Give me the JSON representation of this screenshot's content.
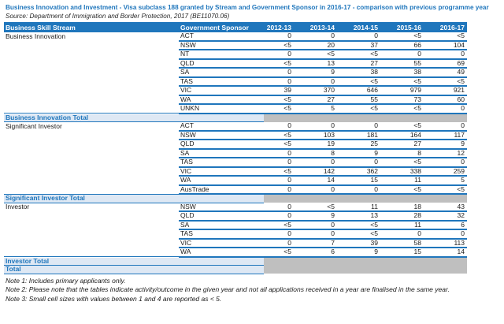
{
  "title": "Business Innovation and Investment - Visa subclass 188 granted by Stream and Government Sponsor in 2016-17 - comparison with previous programme year",
  "source": "Source: Department of Immigration and Border Protection, 2017 (BE11070.06)",
  "colors": {
    "header_bg": "#1f76bc",
    "row_border": "#1f76bc",
    "total_row_bg": "#dee8f4",
    "total_row_text": "#1f76bc",
    "suppressed_area_gray": "#bfbfbf",
    "title_text": "#1f76bc"
  },
  "table": {
    "columns": [
      "Business Skill Stream",
      "Government Sponsor",
      "2012-13",
      "2013-14",
      "2014-15",
      "2015-16",
      "2016-17"
    ],
    "groups": [
      {
        "stream": "Business Innovation",
        "total_label": "Business Innovation Total",
        "rows": [
          {
            "sponsor": "ACT",
            "values": [
              "0",
              "0",
              "0",
              "<5",
              "<5"
            ]
          },
          {
            "sponsor": "NSW",
            "values": [
              "<5",
              "20",
              "37",
              "66",
              "104"
            ]
          },
          {
            "sponsor": "NT",
            "values": [
              "0",
              "<5",
              "<5",
              "0",
              "0"
            ]
          },
          {
            "sponsor": "QLD",
            "values": [
              "<5",
              "13",
              "27",
              "55",
              "69"
            ]
          },
          {
            "sponsor": "SA",
            "values": [
              "0",
              "9",
              "38",
              "38",
              "49"
            ]
          },
          {
            "sponsor": "TAS",
            "values": [
              "0",
              "0",
              "<5",
              "<5",
              "<5"
            ]
          },
          {
            "sponsor": "VIC",
            "values": [
              "39",
              "370",
              "646",
              "979",
              "921"
            ]
          },
          {
            "sponsor": "WA",
            "values": [
              "<5",
              "27",
              "55",
              "73",
              "60"
            ]
          },
          {
            "sponsor": "UNKN",
            "values": [
              "<5",
              "5",
              "<5",
              "<5",
              "0"
            ]
          }
        ]
      },
      {
        "stream": "Significant Investor",
        "total_label": "Significant Investor Total",
        "rows": [
          {
            "sponsor": "ACT",
            "values": [
              "0",
              "0",
              "0",
              "<5",
              "0"
            ]
          },
          {
            "sponsor": "NSW",
            "values": [
              "<5",
              "103",
              "181",
              "164",
              "117"
            ]
          },
          {
            "sponsor": "QLD",
            "values": [
              "<5",
              "19",
              "25",
              "27",
              "9"
            ]
          },
          {
            "sponsor": "SA",
            "values": [
              "0",
              "8",
              "9",
              "8",
              "12"
            ]
          },
          {
            "sponsor": "TAS",
            "values": [
              "0",
              "0",
              "0",
              "<5",
              "0"
            ]
          },
          {
            "sponsor": "VIC",
            "values": [
              "<5",
              "142",
              "362",
              "338",
              "259"
            ]
          },
          {
            "sponsor": "WA",
            "values": [
              "0",
              "14",
              "15",
              "11",
              "5"
            ]
          },
          {
            "sponsor": "AusTrade",
            "values": [
              "0",
              "0",
              "0",
              "<5",
              "<5"
            ]
          }
        ]
      },
      {
        "stream": "Investor",
        "total_label": "Investor Total",
        "rows": [
          {
            "sponsor": "NSW",
            "values": [
              "0",
              "<5",
              "11",
              "18",
              "43"
            ]
          },
          {
            "sponsor": "QLD",
            "values": [
              "0",
              "9",
              "13",
              "28",
              "32"
            ]
          },
          {
            "sponsor": "SA",
            "values": [
              "<5",
              "0",
              "<5",
              "11",
              "6"
            ]
          },
          {
            "sponsor": "TAS",
            "values": [
              "0",
              "0",
              "<5",
              "0",
              "0"
            ]
          },
          {
            "sponsor": "VIC",
            "values": [
              "0",
              "7",
              "39",
              "58",
              "113"
            ]
          },
          {
            "sponsor": "WA",
            "values": [
              "<5",
              "6",
              "9",
              "15",
              "14"
            ]
          }
        ]
      }
    ],
    "grand_total_label": "Total"
  },
  "notes": [
    "Note 1: Includes primary applicants only.",
    "Note 2: Please note that the tables indicate activity/outcome in the given year and not all applications received in a year are finalised in the same year.",
    "Note 3: Small cell sizes with values between 1 and 4 are reported as < 5."
  ]
}
